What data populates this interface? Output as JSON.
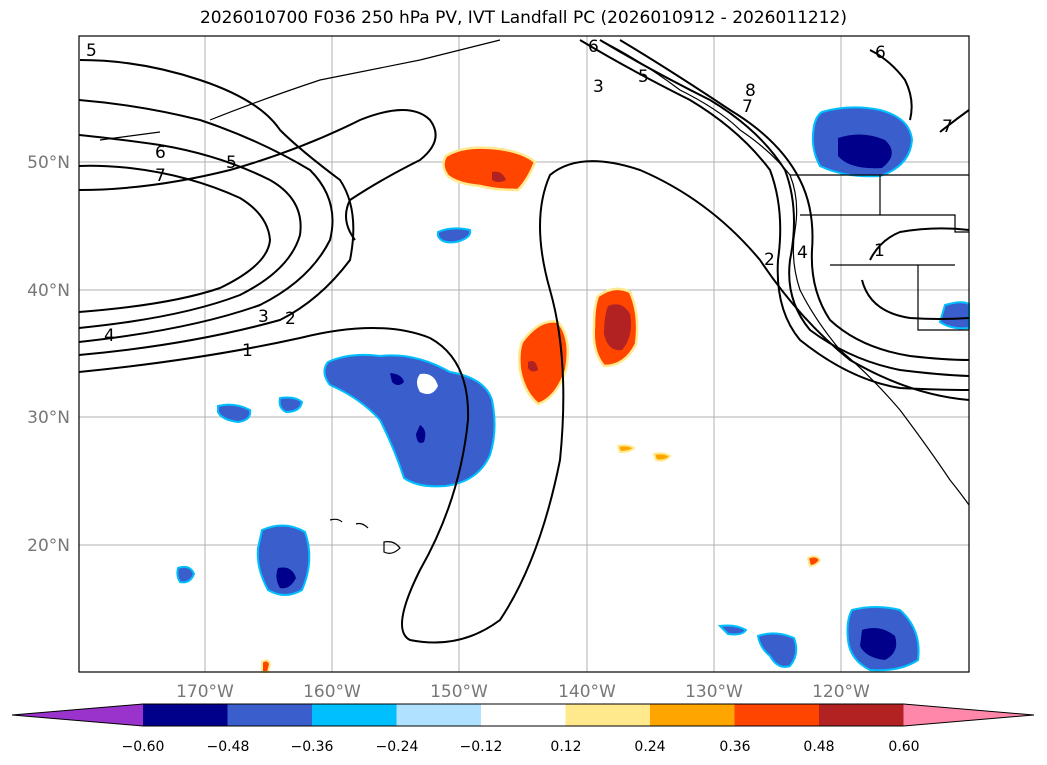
{
  "title": "2026010700 F036 250 hPa PV, IVT Landfall PC (2026010912 - 2026011212)",
  "map": {
    "lon_ticks": [
      "170°W",
      "160°W",
      "150°W",
      "140°W",
      "130°W",
      "120°W"
    ],
    "lat_ticks": [
      "50°N",
      "40°N",
      "30°N",
      "20°N"
    ],
    "contour_labels": [
      "5",
      "6",
      "7",
      "5",
      "4",
      "3",
      "2",
      "1",
      "3",
      "6",
      "5",
      "8",
      "7",
      "2",
      "4",
      "6",
      "7",
      "1"
    ]
  },
  "colorbar": {
    "tick_labels": [
      "−0.60",
      "−0.48",
      "−0.36",
      "−0.24",
      "−0.12",
      "0.12",
      "0.24",
      "0.36",
      "0.48",
      "0.60"
    ],
    "colors": [
      "#9933cc",
      "#00008b",
      "#3a5fcd",
      "#00bfff",
      "#b0e2ff",
      "#ffffff",
      "#ffe98c",
      "#ffa500",
      "#ff4500",
      "#b22222",
      "#ff88aa"
    ]
  },
  "fills": {
    "negative_light": "#00bfff",
    "negative_mid": "#3a5fcd",
    "negative_dark": "#00008b",
    "positive_light": "#ffe98c",
    "positive_mid": "#ff4500",
    "positive_dark": "#b22222",
    "positive_orange": "#ffa500"
  }
}
